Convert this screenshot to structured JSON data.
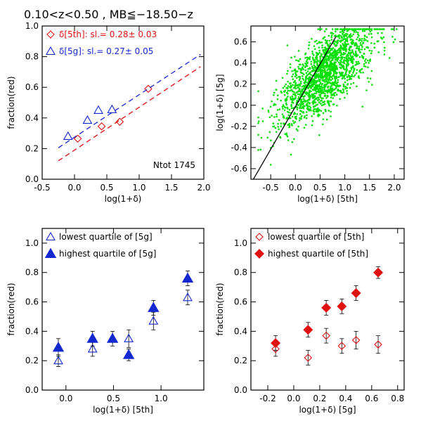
{
  "figure_title": "0.10<z<0.50   ,   MB≦−18.50−z",
  "colors": {
    "red": "#e01010",
    "blue": "#1428d0",
    "green": "#00e000",
    "dark": "#000000"
  },
  "chart_data": [
    {
      "type": "scatter",
      "panel": "top-left",
      "xlabel": "log(1+δ)",
      "ylabel": "fraction(red)",
      "xlim": [
        -0.5,
        2.0
      ],
      "ylim": [
        0.0,
        1.0
      ],
      "xticks": [
        "-0.5",
        "0.0",
        "0.5",
        "1.0",
        "1.5",
        "2.0"
      ],
      "yticks": [
        "0.0",
        "0.2",
        "0.4",
        "0.6",
        "0.8",
        "1.0"
      ],
      "annotation": "Ntot 1745",
      "grid": false,
      "legend_position": "top-left",
      "series": [
        {
          "name": "δ[5th]: sl.= 0.28± 0.03",
          "marker": "diamond-open",
          "color": "red",
          "x": [
            0.05,
            0.42,
            0.7,
            1.14
          ],
          "y": [
            0.265,
            0.345,
            0.375,
            0.59
          ],
          "fit": {
            "x": [
              -0.25,
              1.95
            ],
            "y": [
              0.12,
              0.735
            ]
          }
        },
        {
          "name": "δ[5g]: sl.= 0.27± 0.05",
          "marker": "triangle-open",
          "color": "blue",
          "x": [
            -0.1,
            0.2,
            0.37,
            0.58
          ],
          "y": [
            0.28,
            0.385,
            0.45,
            0.455
          ],
          "fit": {
            "x": [
              -0.25,
              1.95
            ],
            "y": [
              0.205,
              0.815
            ]
          }
        }
      ]
    },
    {
      "type": "scatter",
      "panel": "top-right",
      "xlabel": "log(1+δ) [5th]",
      "ylabel": "log(1+δ) [5g]",
      "xlim": [
        -0.9,
        2.2
      ],
      "ylim": [
        -0.7,
        0.75
      ],
      "xticks": [
        "-0.5",
        "0.0",
        "0.5",
        "1.0",
        "1.5",
        "2.0"
      ],
      "yticks": [
        "-0.6",
        "-0.4",
        "-0.2",
        "0.0",
        "0.2",
        "0.4",
        "0.6"
      ],
      "grid": false,
      "series": [
        {
          "color": "green",
          "marker": "dot",
          "count": 1745
        }
      ],
      "line": {
        "x": [
          -0.85,
          0.82
        ],
        "y": [
          -0.7,
          0.65
        ],
        "color": "dark"
      }
    },
    {
      "type": "scatter",
      "panel": "bottom-left",
      "xlabel": "log(1+δ) [5th]",
      "ylabel": "fraction(red)",
      "xlim": [
        -0.25,
        1.45
      ],
      "ylim": [
        0.0,
        1.1
      ],
      "xticks": [
        "0.0",
        "0.5",
        "1.0"
      ],
      "yticks": [
        "0.0",
        "0.2",
        "0.4",
        "0.6",
        "0.8",
        "1.0"
      ],
      "grid": false,
      "legend_position": "top-left",
      "series": [
        {
          "name": "lowest quartile of [5g]",
          "marker": "triangle-open",
          "color": "blue",
          "x": [
            -0.08,
            0.28,
            0.66,
            0.92,
            1.28
          ],
          "y": [
            0.2,
            0.28,
            0.35,
            0.47,
            0.63
          ],
          "err": [
            0.04,
            0.05,
            0.06,
            0.06,
            0.05
          ]
        },
        {
          "name": "highest quartile of [5g]",
          "marker": "triangle-filled",
          "color": "blue",
          "x": [
            -0.08,
            0.28,
            0.49,
            0.66,
            0.92,
            1.28
          ],
          "y": [
            0.29,
            0.35,
            0.35,
            0.24,
            0.56,
            0.76
          ],
          "err": [
            0.06,
            0.05,
            0.05,
            0.04,
            0.05,
            0.05
          ]
        }
      ]
    },
    {
      "type": "scatter",
      "panel": "bottom-right",
      "xlabel": "log(1+δ) [5g]",
      "ylabel": "fraction(red)",
      "xlim": [
        -0.33,
        0.85
      ],
      "ylim": [
        0.0,
        1.1
      ],
      "xticks": [
        "-0.2",
        "0.0",
        "0.2",
        "0.4",
        "0.6",
        "0.8"
      ],
      "yticks": [
        "0.0",
        "0.2",
        "0.4",
        "0.6",
        "0.8",
        "1.0"
      ],
      "grid": false,
      "legend_position": "top-left",
      "series": [
        {
          "name": "lowest quartile of [5th]",
          "marker": "diamond-open",
          "color": "red",
          "x": [
            -0.14,
            0.11,
            0.25,
            0.37,
            0.48,
            0.65
          ],
          "y": [
            0.28,
            0.22,
            0.37,
            0.3,
            0.34,
            0.31
          ],
          "err": [
            0.05,
            0.05,
            0.05,
            0.05,
            0.06,
            0.06
          ]
        },
        {
          "name": "highest quartile of [5th]",
          "marker": "diamond-filled",
          "color": "red",
          "x": [
            -0.14,
            0.11,
            0.25,
            0.37,
            0.48,
            0.65
          ],
          "y": [
            0.32,
            0.41,
            0.56,
            0.57,
            0.66,
            0.8
          ],
          "err": [
            0.05,
            0.05,
            0.05,
            0.05,
            0.05,
            0.04
          ]
        }
      ]
    }
  ]
}
